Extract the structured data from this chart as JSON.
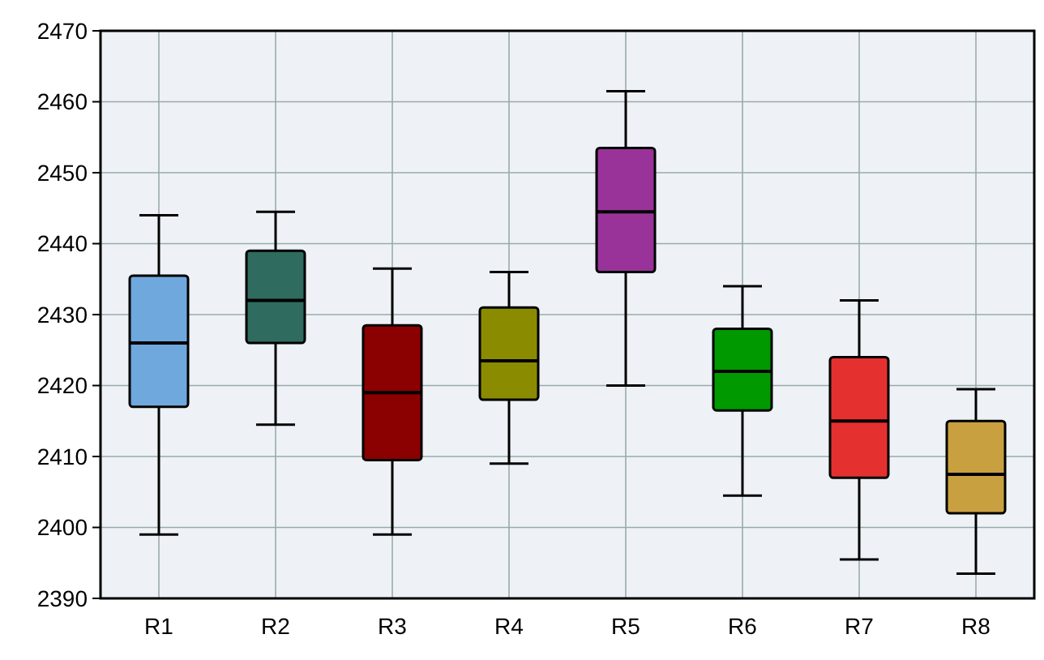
{
  "chart_data": {
    "type": "box",
    "categories": [
      "R1",
      "R2",
      "R3",
      "R4",
      "R5",
      "R6",
      "R7",
      "R8"
    ],
    "colors": [
      "#6fa8dc",
      "#2f6b5e",
      "#8b0000",
      "#8b8b00",
      "#993399",
      "#009900",
      "#e53030",
      "#c8a040"
    ],
    "boxes": [
      {
        "low": 2399,
        "q1": 2417,
        "median": 2426,
        "q3": 2435.5,
        "high": 2444
      },
      {
        "low": 2414.5,
        "q1": 2426,
        "median": 2432,
        "q3": 2439,
        "high": 2444.5
      },
      {
        "low": 2399,
        "q1": 2409.5,
        "median": 2419,
        "q3": 2428.5,
        "high": 2436.5
      },
      {
        "low": 2409,
        "q1": 2418,
        "median": 2423.5,
        "q3": 2431,
        "high": 2436
      },
      {
        "low": 2420,
        "q1": 2436,
        "median": 2444.5,
        "q3": 2453.5,
        "high": 2461.5
      },
      {
        "low": 2404.5,
        "q1": 2416.5,
        "median": 2422,
        "q3": 2428,
        "high": 2434
      },
      {
        "low": 2395.5,
        "q1": 2407,
        "median": 2415,
        "q3": 2424,
        "high": 2432
      },
      {
        "low": 2393.5,
        "q1": 2402,
        "median": 2407.5,
        "q3": 2415,
        "high": 2419.5
      }
    ],
    "ylim": [
      2390,
      2470
    ],
    "yticks": [
      2390,
      2400,
      2410,
      2420,
      2430,
      2440,
      2450,
      2460,
      2470
    ],
    "grid": true
  }
}
